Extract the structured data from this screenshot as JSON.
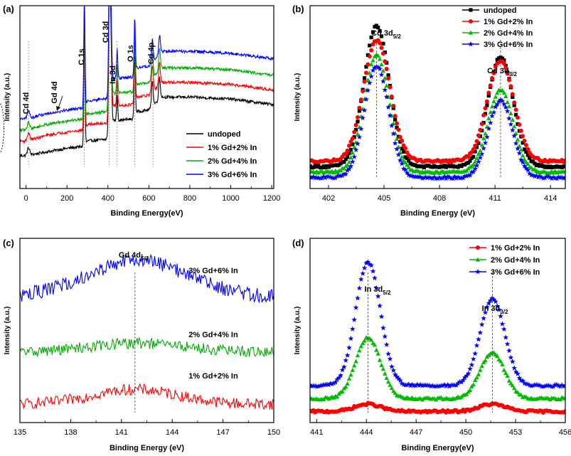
{
  "figure": {
    "name": "xps-spectra-figure"
  },
  "chart_data": [
    {
      "id": "a",
      "panel_label": "(a)",
      "type": "line",
      "title": "",
      "xlabel": "Binding Energy(eV)",
      "ylabel": "Intensity (a.u.)",
      "xlim": [
        -30,
        1210
      ],
      "ylim": [
        0,
        100
      ],
      "xticks": [
        0,
        200,
        400,
        600,
        800,
        1000,
        1200
      ],
      "yticks": [],
      "legend": {
        "position": "bottom-right",
        "order": [
          "undoped",
          "1% Gd+2% In",
          "2% Gd+4% In",
          "3% Gd+6% In"
        ]
      },
      "series": [
        {
          "name": "undoped",
          "color": "#000000",
          "marker": "none",
          "base": [
            [
              0,
              18
            ],
            [
              100,
              20
            ],
            [
              200,
              22
            ],
            [
              280,
              23
            ],
            [
              300,
              26
            ],
            [
              400,
              27
            ],
            [
              420,
              37
            ],
            [
              520,
              38
            ],
            [
              540,
              42
            ],
            [
              600,
              43
            ],
            [
              660,
              50
            ],
            [
              800,
              50
            ],
            [
              1000,
              49
            ],
            [
              1200,
              46
            ]
          ],
          "peaks": [
            [
              12,
              4,
              6
            ],
            [
              285,
              62,
              3
            ],
            [
              407,
              70,
              4
            ],
            [
              414,
              45,
              4
            ],
            [
              445,
              14,
              3
            ],
            [
              531,
              34,
              3
            ],
            [
              617,
              14,
              4
            ],
            [
              652,
              12,
              4
            ]
          ]
        },
        {
          "name": "1% Gd+2% In",
          "color": "#ff0000",
          "marker": "none",
          "base": [
            [
              0,
              26
            ],
            [
              100,
              29
            ],
            [
              200,
              31
            ],
            [
              280,
              32
            ],
            [
              300,
              35
            ],
            [
              400,
              36
            ],
            [
              420,
              45
            ],
            [
              520,
              46
            ],
            [
              540,
              50
            ],
            [
              600,
              51
            ],
            [
              660,
              58
            ],
            [
              800,
              58
            ],
            [
              1000,
              57
            ],
            [
              1200,
              54
            ]
          ],
          "peaks": [
            [
              12,
              4,
              6
            ],
            [
              285,
              62,
              3
            ],
            [
              407,
              68,
              4
            ],
            [
              414,
              44,
              4
            ],
            [
              445,
              14,
              3
            ],
            [
              531,
              34,
              3
            ],
            [
              617,
              14,
              4
            ],
            [
              652,
              12,
              4
            ]
          ]
        },
        {
          "name": "2% Gd+4% In",
          "color": "#00aa00",
          "marker": "none",
          "base": [
            [
              0,
              32
            ],
            [
              100,
              35
            ],
            [
              200,
              37
            ],
            [
              280,
              38
            ],
            [
              300,
              41
            ],
            [
              400,
              42
            ],
            [
              420,
              52
            ],
            [
              520,
              53
            ],
            [
              540,
              57
            ],
            [
              600,
              58
            ],
            [
              660,
              66
            ],
            [
              800,
              66
            ],
            [
              1000,
              65
            ],
            [
              1200,
              62
            ]
          ],
          "peaks": [
            [
              12,
              4,
              6
            ],
            [
              285,
              62,
              3
            ],
            [
              407,
              66,
              4
            ],
            [
              414,
              44,
              4
            ],
            [
              445,
              15,
              3
            ],
            [
              531,
              34,
              3
            ],
            [
              617,
              14,
              4
            ],
            [
              652,
              12,
              4
            ]
          ]
        },
        {
          "name": "3% Gd+6% In",
          "color": "#0000ff",
          "marker": "none",
          "base": [
            [
              0,
              38
            ],
            [
              100,
              41
            ],
            [
              200,
              43
            ],
            [
              280,
              44
            ],
            [
              300,
              48
            ],
            [
              400,
              49
            ],
            [
              420,
              60
            ],
            [
              520,
              61
            ],
            [
              540,
              66
            ],
            [
              600,
              67
            ],
            [
              660,
              75
            ],
            [
              800,
              75
            ],
            [
              1000,
              74
            ],
            [
              1200,
              71
            ]
          ],
          "peaks": [
            [
              12,
              4,
              6
            ],
            [
              285,
              58,
              3
            ],
            [
              407,
              60,
              4
            ],
            [
              414,
              40,
              4
            ],
            [
              445,
              16,
              3
            ],
            [
              531,
              30,
              3
            ],
            [
              617,
              12,
              4
            ],
            [
              652,
              10,
              4
            ]
          ]
        }
      ],
      "annotations": [
        {
          "text": "Cd 4d",
          "x": 12
        },
        {
          "text": "Gd 4d",
          "x": 180
        },
        {
          "text": "C 1s",
          "x": 285
        },
        {
          "text": "Cd 3d",
          "x": 407
        },
        {
          "text": "In 3d",
          "x": 445
        },
        {
          "text": "O 1s",
          "x": 531
        },
        {
          "text": "Cd 4p",
          "x": 620
        }
      ]
    },
    {
      "id": "b",
      "panel_label": "(b)",
      "type": "scatter",
      "title": "",
      "xlabel": "Binding Energy (eV)",
      "ylabel": "Intensity (a.u.)",
      "xlim": [
        401,
        414.8
      ],
      "ylim": [
        0,
        100
      ],
      "xticks": [
        402,
        405,
        408,
        411,
        414
      ],
      "yticks": [],
      "legend": {
        "position": "top-right",
        "order": [
          "undoped",
          "1% Gd+2% In",
          "2% Gd+4% In",
          "3% Gd+6% In"
        ]
      },
      "series": [
        {
          "name": "undoped",
          "color": "#000000",
          "marker": "square",
          "base": 12,
          "peaks": [
            [
              404.6,
              77,
              0.68
            ],
            [
              411.3,
              60,
              0.68
            ]
          ]
        },
        {
          "name": "1% Gd+2% In",
          "color": "#ff0000",
          "marker": "circle",
          "base": 15,
          "peaks": [
            [
              404.6,
              66,
              0.72
            ],
            [
              411.3,
              55,
              0.72
            ]
          ]
        },
        {
          "name": "2% Gd+4% In",
          "color": "#00bb00",
          "marker": "triangle",
          "base": 9,
          "peaks": [
            [
              404.6,
              64,
              0.68
            ],
            [
              411.3,
              45,
              0.68
            ]
          ]
        },
        {
          "name": "3% Gd+6% In",
          "color": "#0000ff",
          "marker": "star",
          "base": 6,
          "peaks": [
            [
              404.6,
              61,
              0.66
            ],
            [
              411.3,
              42,
              0.66
            ]
          ]
        }
      ],
      "annotations": [
        {
          "text": "Cd 3d",
          "sub": "5/2",
          "x": 404.6
        },
        {
          "text": "Cd 3d",
          "sub": "3/2",
          "x": 411.3
        }
      ]
    },
    {
      "id": "c",
      "panel_label": "(c)",
      "type": "line",
      "title": "",
      "xlabel": "Binding Energy (eV)",
      "ylabel": "Intensity (a.u.)",
      "xlim": [
        135,
        150
      ],
      "ylim": [
        0,
        100
      ],
      "xticks": [
        135,
        138,
        141,
        144,
        147,
        150
      ],
      "yticks": [],
      "legend": {
        "position": "inline",
        "order": [
          "3% Gd+6% In",
          "2% Gd+4% In",
          "1% Gd+2% In"
        ]
      },
      "series": [
        {
          "name": "1% Gd+2% In",
          "color": "#ff0000",
          "marker": "none",
          "base": 10,
          "peaks": [
            [
              141.8,
              8,
              2.5
            ]
          ],
          "noise": 3
        },
        {
          "name": "2% Gd+4% In",
          "color": "#00aa00",
          "marker": "none",
          "base": 38,
          "peaks": [
            [
              142,
              5,
              3
            ]
          ],
          "noise": 3
        },
        {
          "name": "3% Gd+6% In",
          "color": "#0000ff",
          "marker": "none",
          "base": 68,
          "peaks": [
            [
              142,
              20,
              3
            ]
          ],
          "noise": 4
        }
      ],
      "annotations": [
        {
          "text": "Gd 4d",
          "sub": "5/2",
          "x": 141.8
        }
      ]
    },
    {
      "id": "d",
      "panel_label": "(d)",
      "type": "scatter",
      "title": "",
      "xlabel": "Binding Energy(eV)",
      "ylabel": "Intensity (a.u.)",
      "xlim": [
        440.6,
        456
      ],
      "ylim": [
        0,
        100
      ],
      "xticks": [
        441,
        444,
        447,
        450,
        453,
        456
      ],
      "yticks": [],
      "legend": {
        "position": "top-right",
        "order": [
          "1% Gd+2% In",
          "2% Gd+4% In",
          "3% Gd+6% In"
        ]
      },
      "series": [
        {
          "name": "1% Gd+2% In",
          "color": "#ff0000",
          "marker": "circle",
          "base": 6,
          "peaks": [
            [
              444.1,
              4,
              0.8
            ],
            [
              451.6,
              4,
              0.8
            ]
          ]
        },
        {
          "name": "2% Gd+4% In",
          "color": "#00bb00",
          "marker": "triangle",
          "base": 13,
          "peaks": [
            [
              444.1,
              33,
              0.75
            ],
            [
              451.6,
              25,
              0.75
            ]
          ]
        },
        {
          "name": "3% Gd+6% In",
          "color": "#0000ff",
          "marker": "star",
          "base": 20,
          "peaks": [
            [
              444.1,
              67,
              0.75
            ],
            [
              451.6,
              47,
              0.75
            ]
          ]
        }
      ],
      "annotations": [
        {
          "text": "In 3d",
          "sub": "5/2",
          "x": 444.1
        },
        {
          "text": "In 3d",
          "sub": "3/2",
          "x": 451.6
        }
      ]
    }
  ]
}
